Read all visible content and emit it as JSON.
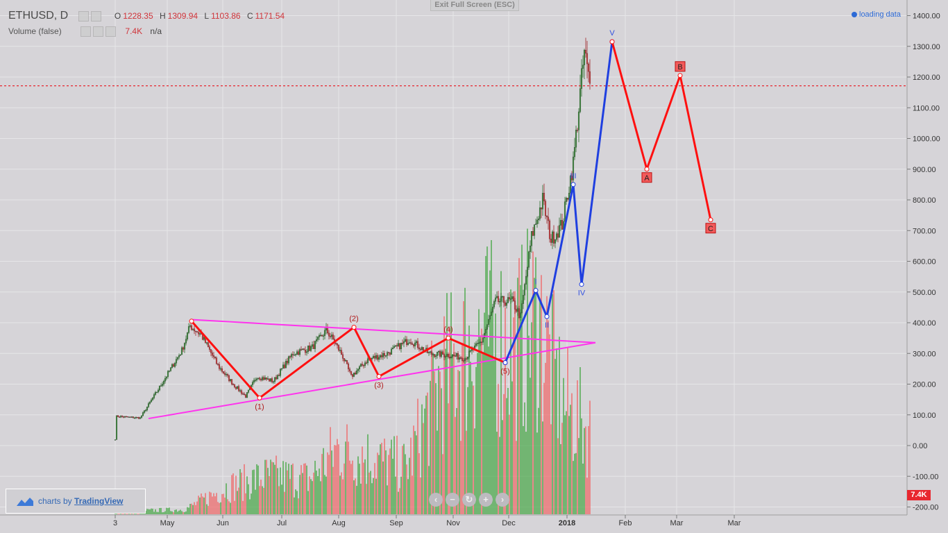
{
  "header": {
    "symbol": "ETHUSD, D",
    "ohlc": [
      {
        "label": "O",
        "value": "1228.35"
      },
      {
        "label": "H",
        "value": "1309.94"
      },
      {
        "label": "L",
        "value": "1103.86"
      },
      {
        "label": "C",
        "value": "1171.54"
      }
    ],
    "volume_label": "Volume (false)",
    "volume_value": "7.4K",
    "volume_na": "n/a"
  },
  "exit_fullscreen_label": "Exit Full Screen (ESC)",
  "loading_label": "loading data",
  "branding": {
    "prefix": "charts by",
    "name": "TradingView"
  },
  "nav_buttons": [
    "‹",
    "−",
    "↻",
    "+",
    "›"
  ],
  "volume_tag": "7.4K",
  "colors": {
    "up": "#3a8e3a",
    "down": "#d6373b",
    "wave_red": "#ff1010",
    "wave_blue": "#1f3fe0",
    "triangle": "#ff33ee",
    "price_line": "#e8272f",
    "background": "#d6d4d8"
  },
  "chart_data": {
    "type": "candlestick",
    "y_axis": {
      "min": -200,
      "max": 1400,
      "ticks": [
        "1400.00",
        "1300.00",
        "1200.00",
        "1100.00",
        "1000.00",
        "900.00",
        "800.00",
        "700.00",
        "600.00",
        "500.00",
        "400.00",
        "300.00",
        "200.00",
        "100.00",
        "0.00",
        "-100.00",
        "-200.00"
      ]
    },
    "x_axis": {
      "ticks": [
        "3",
        "May",
        "Jun",
        "Jul",
        "Aug",
        "Sep",
        "Nov",
        "Dec",
        "2018",
        "Feb",
        "Mar",
        "Mar"
      ]
    },
    "current_price": 1171.54,
    "price_path": [
      {
        "d": 0,
        "p": 20
      },
      {
        "d": 1,
        "p": 95
      },
      {
        "d": 18,
        "p": 90
      },
      {
        "d": 32,
        "p": 190
      },
      {
        "d": 40,
        "p": 250
      },
      {
        "d": 48,
        "p": 310
      },
      {
        "d": 54,
        "p": 390
      },
      {
        "d": 62,
        "p": 360
      },
      {
        "d": 74,
        "p": 260
      },
      {
        "d": 86,
        "p": 195
      },
      {
        "d": 94,
        "p": 160
      },
      {
        "d": 102,
        "p": 225
      },
      {
        "d": 114,
        "p": 210
      },
      {
        "d": 128,
        "p": 300
      },
      {
        "d": 142,
        "p": 320
      },
      {
        "d": 152,
        "p": 375
      },
      {
        "d": 157,
        "p": 345
      },
      {
        "d": 164,
        "p": 290
      },
      {
        "d": 170,
        "p": 225
      },
      {
        "d": 182,
        "p": 280
      },
      {
        "d": 196,
        "p": 300
      },
      {
        "d": 212,
        "p": 345
      },
      {
        "d": 226,
        "p": 300
      },
      {
        "d": 240,
        "p": 295
      },
      {
        "d": 252,
        "p": 285
      },
      {
        "d": 264,
        "p": 340
      },
      {
        "d": 274,
        "p": 470
      },
      {
        "d": 286,
        "p": 470
      },
      {
        "d": 292,
        "p": 420
      },
      {
        "d": 300,
        "p": 680
      },
      {
        "d": 308,
        "p": 800
      },
      {
        "d": 314,
        "p": 670
      },
      {
        "d": 322,
        "p": 720
      },
      {
        "d": 330,
        "p": 920
      },
      {
        "d": 334,
        "p": 1100
      },
      {
        "d": 338,
        "p": 1280
      },
      {
        "d": 342,
        "p": 1171
      }
    ],
    "volume_path": [
      {
        "d": 0,
        "v": 5
      },
      {
        "d": 50,
        "v": 8
      },
      {
        "d": 80,
        "v": 45
      },
      {
        "d": 110,
        "v": 65
      },
      {
        "d": 140,
        "v": 60
      },
      {
        "d": 160,
        "v": 110
      },
      {
        "d": 210,
        "v": 80
      },
      {
        "d": 235,
        "v": 230
      },
      {
        "d": 262,
        "v": 300
      },
      {
        "d": 290,
        "v": 290
      },
      {
        "d": 305,
        "v": 330
      },
      {
        "d": 322,
        "v": 190
      },
      {
        "d": 342,
        "v": 140
      }
    ],
    "annotations": {
      "red_zigzag": {
        "points": [
          {
            "d": 55,
            "p": 405
          },
          {
            "d": 104,
            "p": 155
          },
          {
            "d": 172,
            "p": 385
          },
          {
            "d": 190,
            "p": 225
          },
          {
            "d": 240,
            "p": 350
          },
          {
            "d": 281,
            "p": 270
          }
        ],
        "labels": [
          "",
          "(1)",
          "(2)",
          "(3)",
          "(4)",
          "(5)"
        ]
      },
      "blue_zigzag": {
        "points": [
          {
            "d": 281,
            "p": 270
          },
          {
            "d": 303,
            "p": 505
          },
          {
            "d": 311,
            "p": 420
          },
          {
            "d": 330,
            "p": 850
          },
          {
            "d": 336,
            "p": 525
          },
          {
            "d": 358,
            "p": 1315
          }
        ],
        "labels": [
          "",
          "I",
          "II",
          "III",
          "IV",
          "V"
        ]
      },
      "projection": {
        "points": [
          {
            "d": 358,
            "p": 1315
          },
          {
            "d": 383,
            "p": 900
          },
          {
            "d": 407,
            "p": 1205
          },
          {
            "d": 429,
            "p": 735
          }
        ],
        "labels": [
          "",
          "A",
          "B",
          "C"
        ]
      },
      "triangle": [
        {
          "from": {
            "d": 56,
            "p": 410
          },
          "to": {
            "d": 346,
            "p": 335
          }
        },
        {
          "from": {
            "d": 24,
            "p": 88
          },
          "to": {
            "d": 346,
            "p": 335
          }
        }
      ]
    }
  }
}
